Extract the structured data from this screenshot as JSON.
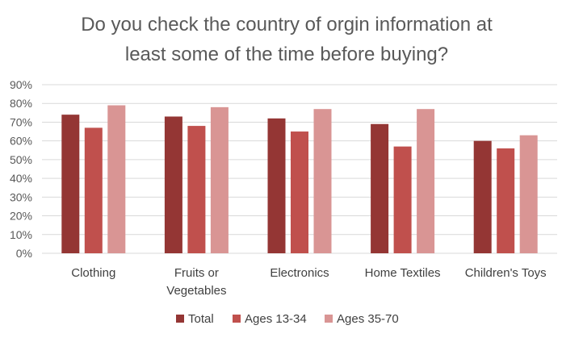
{
  "chart_data": {
    "type": "bar",
    "title_lines": [
      "Do you check the country of orgin information at",
      "least some of the time before buying?"
    ],
    "categories": [
      [
        "Clothing"
      ],
      [
        "Fruits or",
        "Vegetables"
      ],
      [
        "Electronics"
      ],
      [
        "Home Textiles"
      ],
      [
        "Children's Toys"
      ]
    ],
    "series": [
      {
        "name": "Total",
        "color": "#943634",
        "values": [
          74,
          73,
          72,
          69,
          60
        ]
      },
      {
        "name": "Ages 13-34",
        "color": "#c0504d",
        "values": [
          67,
          68,
          65,
          57,
          56
        ]
      },
      {
        "name": "Ages 35-70",
        "color": "#d99594",
        "values": [
          79,
          78,
          77,
          77,
          63
        ]
      }
    ],
    "y_ticks": [
      "0%",
      "10%",
      "20%",
      "30%",
      "40%",
      "50%",
      "60%",
      "70%",
      "80%",
      "90%"
    ],
    "ylim": [
      0,
      90
    ],
    "grid": true,
    "legend_position": "bottom"
  }
}
